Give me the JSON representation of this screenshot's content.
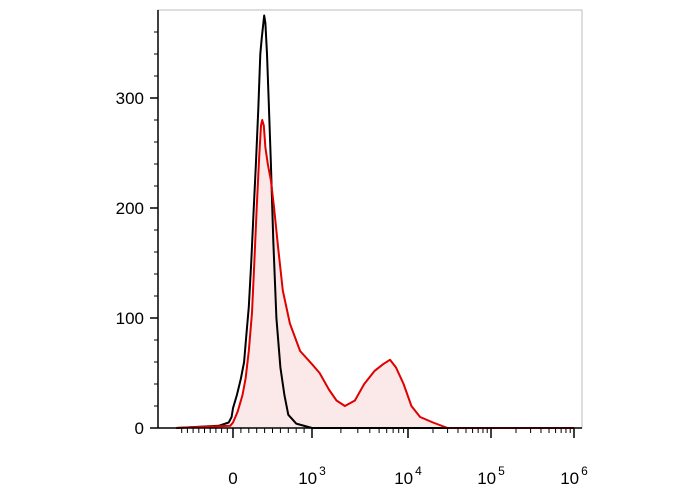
{
  "chart_data": {
    "type": "area",
    "title": "",
    "xlabel": "",
    "ylabel": "",
    "x_scale": "biexponential",
    "ylim": [
      0,
      380
    ],
    "y_ticks": [
      {
        "value": 0,
        "label": "0"
      },
      {
        "value": 100,
        "label": "100"
      },
      {
        "value": 200,
        "label": "200"
      },
      {
        "value": 300,
        "label": "300"
      }
    ],
    "x_ticks": [
      {
        "value": 0,
        "base": "0",
        "exp": ""
      },
      {
        "value": 1000,
        "base": "10",
        "exp": "3"
      },
      {
        "value": 10000,
        "base": "10",
        "exp": "4"
      },
      {
        "value": 100000,
        "base": "10",
        "exp": "5"
      },
      {
        "value": 1000000,
        "base": "10",
        "exp": "6"
      }
    ],
    "grid": false,
    "legend": "none",
    "series": [
      {
        "color": "#000000",
        "fill": "none",
        "points": [
          [
            -2000,
            0
          ],
          [
            -500,
            2
          ],
          [
            -150,
            5
          ],
          [
            -50,
            10
          ],
          [
            0,
            18
          ],
          [
            50,
            30
          ],
          [
            100,
            45
          ],
          [
            140,
            60
          ],
          [
            170,
            85
          ],
          [
            200,
            110
          ],
          [
            230,
            150
          ],
          [
            260,
            195
          ],
          [
            290,
            240
          ],
          [
            320,
            290
          ],
          [
            345,
            340
          ],
          [
            365,
            355
          ],
          [
            380,
            365
          ],
          [
            395,
            375
          ],
          [
            410,
            368
          ],
          [
            430,
            340
          ],
          [
            450,
            300
          ],
          [
            480,
            240
          ],
          [
            510,
            170
          ],
          [
            550,
            100
          ],
          [
            600,
            55
          ],
          [
            650,
            30
          ],
          [
            700,
            12
          ],
          [
            800,
            4
          ],
          [
            1000,
            0
          ],
          [
            1000000,
            0
          ]
        ]
      },
      {
        "color": "#e00000",
        "fill": "#fbe8e8",
        "points": [
          [
            -2000,
            0
          ],
          [
            -100,
            2
          ],
          [
            0,
            5
          ],
          [
            60,
            15
          ],
          [
            120,
            30
          ],
          [
            160,
            45
          ],
          [
            200,
            70
          ],
          [
            240,
            105
          ],
          [
            270,
            150
          ],
          [
            300,
            200
          ],
          [
            330,
            245
          ],
          [
            355,
            275
          ],
          [
            370,
            280
          ],
          [
            390,
            275
          ],
          [
            410,
            255
          ],
          [
            440,
            240
          ],
          [
            480,
            225
          ],
          [
            520,
            200
          ],
          [
            570,
            165
          ],
          [
            630,
            125
          ],
          [
            720,
            95
          ],
          [
            850,
            70
          ],
          [
            1000,
            58
          ],
          [
            1200,
            50
          ],
          [
            1500,
            35
          ],
          [
            1800,
            25
          ],
          [
            2200,
            20
          ],
          [
            2800,
            25
          ],
          [
            3500,
            40
          ],
          [
            4500,
            52
          ],
          [
            5500,
            58
          ],
          [
            6500,
            62
          ],
          [
            7500,
            55
          ],
          [
            9000,
            40
          ],
          [
            11000,
            20
          ],
          [
            14000,
            10
          ],
          [
            20000,
            5
          ],
          [
            30000,
            0
          ],
          [
            1000000,
            0
          ]
        ]
      }
    ]
  }
}
